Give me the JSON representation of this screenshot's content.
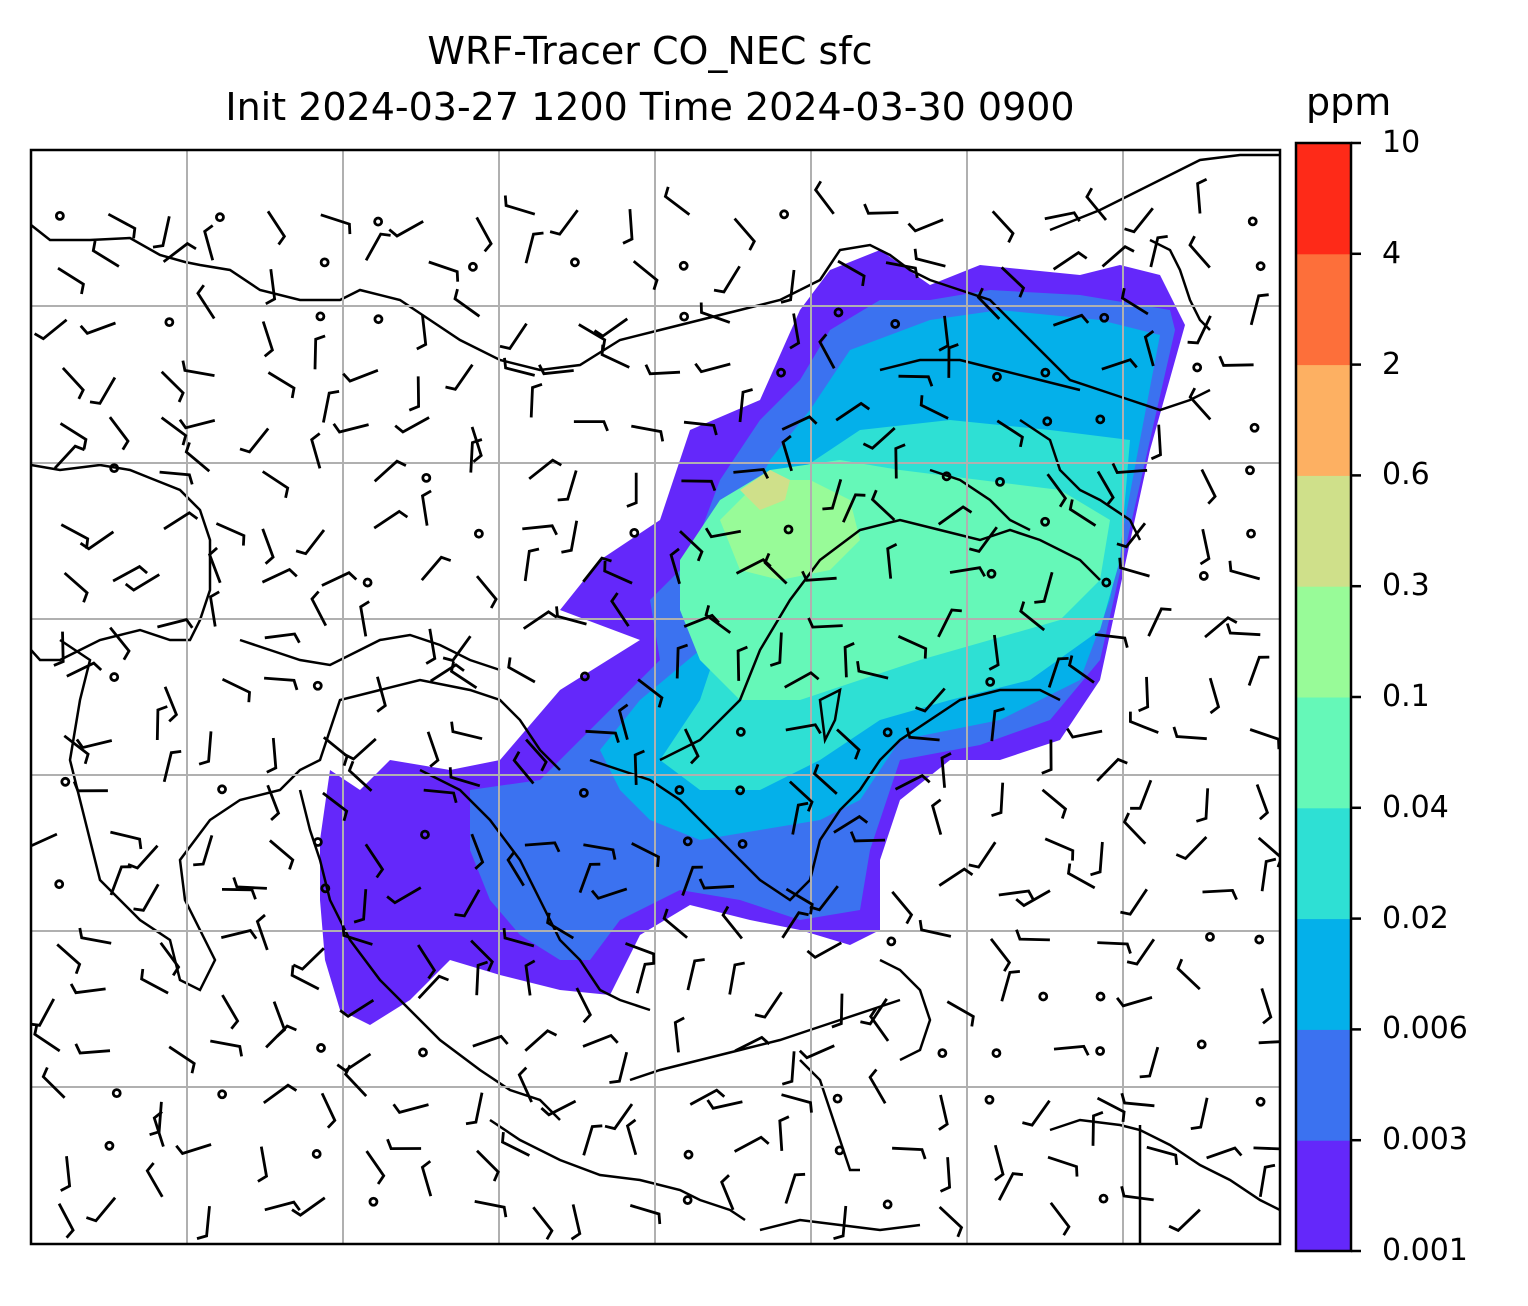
{
  "title": {
    "line1": "WRF-Tracer CO_NEC sfc",
    "line2": "Init 2024-03-27 1200 Time 2024-03-30 0900"
  },
  "colorbar": {
    "label": "ppm",
    "ticks": [
      "0.001",
      "0.003",
      "0.006",
      "0.02",
      "0.04",
      "0.1",
      "0.3",
      "0.6",
      "2",
      "4",
      "10"
    ],
    "colors": [
      "#6428fa",
      "#3b72f0",
      "#04b0ea",
      "#2ee0d4",
      "#65f8b8",
      "#98fb98",
      "#cfe08a",
      "#fdb062",
      "#fd6f3a",
      "#fe2a18"
    ]
  },
  "map": {
    "gridlines": true,
    "coastlines": true,
    "wind_barbs": true
  },
  "colors": {
    "frame": "#000000",
    "grid": "#b0b0b0"
  }
}
